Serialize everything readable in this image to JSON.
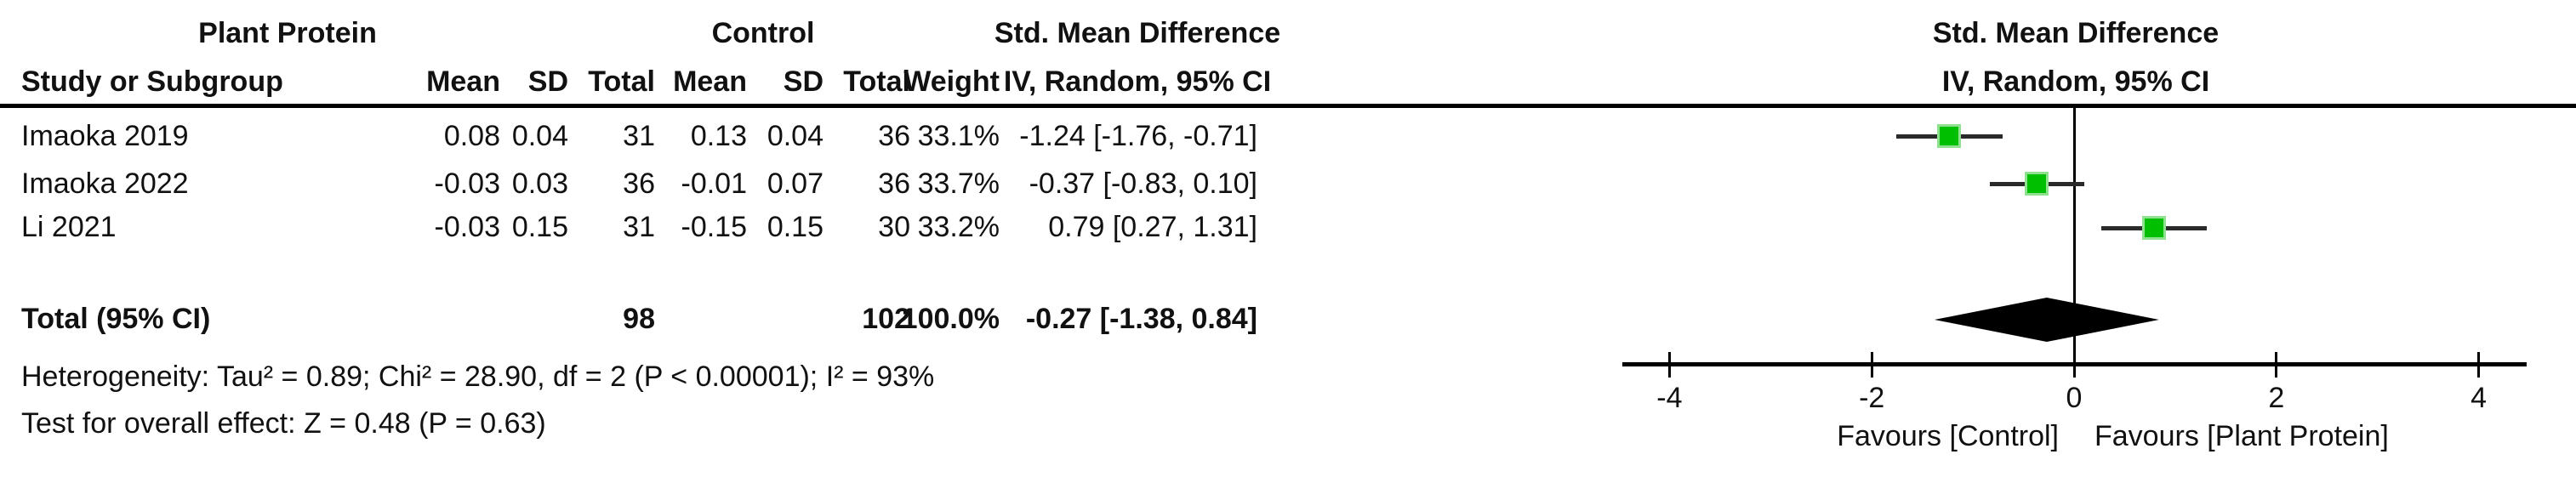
{
  "table": {
    "group1_header": "Plant Protein",
    "group2_header": "Control",
    "effect_header_line1": "Std. Mean Difference",
    "effect_header_line2": "IV, Random, 95% CI",
    "plot_header_line1": "Std. Mean Difference",
    "plot_header_line2": "IV, Random, 95% CI",
    "headers": {
      "study": "Study or Subgroup",
      "pp_mean": "Mean",
      "pp_sd": "SD",
      "pp_total": "Total",
      "c_mean": "Mean",
      "c_sd": "SD",
      "c_total": "Total",
      "weight": "Weight"
    },
    "rows": [
      {
        "study": "Imaoka 2019",
        "pp_mean": "0.08",
        "pp_sd": "0.04",
        "pp_total": "31",
        "c_mean": "0.13",
        "c_sd": "0.04",
        "c_total": "36",
        "weight": "33.1%",
        "effect": "-1.24 [-1.76, -0.71]"
      },
      {
        "study": "Imaoka 2022",
        "pp_mean": "-0.03",
        "pp_sd": "0.03",
        "pp_total": "36",
        "c_mean": "-0.01",
        "c_sd": "0.07",
        "c_total": "36",
        "weight": "33.7%",
        "effect": "-0.37 [-0.83, 0.10]"
      },
      {
        "study": "Li 2021",
        "pp_mean": "-0.03",
        "pp_sd": "0.15",
        "pp_total": "31",
        "c_mean": "-0.15",
        "c_sd": "0.15",
        "c_total": "30",
        "weight": "33.2%",
        "effect": "0.79 [0.27, 1.31]"
      }
    ],
    "total": {
      "label": "Total (95% CI)",
      "pp_total": "98",
      "c_total": "102",
      "weight": "100.0%",
      "effect": "-0.27 [-1.38, 0.84]"
    },
    "heterogeneity": "Heterogeneity: Tau² = 0.89; Chi² = 28.90, df = 2 (P < 0.00001); I² = 93%",
    "overall_effect": "Test for overall effect: Z = 0.48 (P = 0.63)"
  },
  "chart_data": {
    "type": "forest",
    "title": "Std. Mean Difference",
    "method_label": "IV, Random, 95% CI",
    "studies": [
      {
        "name": "Imaoka 2019",
        "smd": -1.24,
        "ci_low": -1.76,
        "ci_high": -0.71,
        "weight_pct": 33.1
      },
      {
        "name": "Imaoka 2022",
        "smd": -0.37,
        "ci_low": -0.83,
        "ci_high": 0.1,
        "weight_pct": 33.7
      },
      {
        "name": "Li 2021",
        "smd": 0.79,
        "ci_low": 0.27,
        "ci_high": 1.31,
        "weight_pct": 33.2
      }
    ],
    "total": {
      "smd": -0.27,
      "ci_low": -1.38,
      "ci_high": 0.84,
      "weight_pct": 100.0
    },
    "axis": {
      "xmin": -4.5,
      "xmax": 4.5,
      "ticks": [
        -4,
        -2,
        0,
        2,
        4
      ],
      "grid": false
    },
    "favours_left": "Favours [Control]",
    "favours_right": "Favours [Plant Protein]",
    "marker_color": "#00BE00",
    "marker_border_color": "#8FE08F",
    "ci_line_color": "#2a2a2a",
    "diamond_color": "#000000"
  }
}
